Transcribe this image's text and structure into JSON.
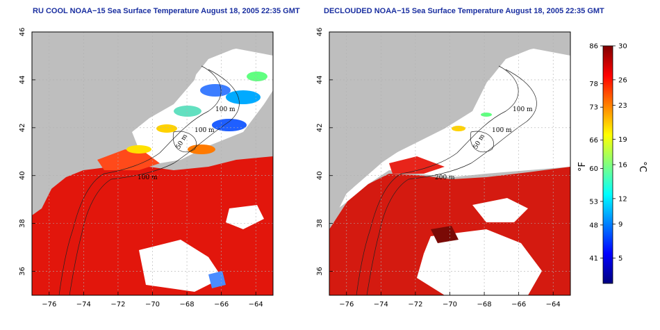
{
  "panels": [
    {
      "id": "left",
      "title": "RU COOL NOAA−15 Sea Surface Temperature August 18, 2005 22:35 GMT",
      "mode": "raw"
    },
    {
      "id": "right",
      "title": "DECLOUDED NOAA−15 Sea Surface Temperature August 18, 2005 22:35 GMT",
      "mode": "declouded"
    }
  ],
  "axes": {
    "lon_ticks": [
      -76,
      -74,
      -72,
      -70,
      -68,
      -66,
      -64
    ],
    "lon_tick_labels": [
      "−76",
      "−74",
      "−72",
      "−70",
      "−68",
      "−66",
      "−64"
    ],
    "lat_ticks": [
      36,
      38,
      40,
      42,
      44,
      46
    ],
    "lat_tick_labels": [
      "36",
      "38",
      "40",
      "42",
      "44",
      "46"
    ],
    "lon_range": [
      -77,
      -63
    ],
    "lat_range": [
      35,
      46
    ]
  },
  "contour_labels": [
    "100 m",
    "100 m",
    "50 m",
    "100 m",
    "100 m",
    "200 m"
  ],
  "colorbar": {
    "fahrenheit_ticks": [
      86,
      78,
      73,
      66,
      60,
      53,
      48,
      41
    ],
    "fahrenheit_labels": [
      "86",
      "78",
      "73",
      "66",
      "60",
      "53",
      "48",
      "41"
    ],
    "celsius_ticks": [
      30,
      26,
      23,
      19,
      16,
      12,
      9,
      5
    ],
    "celsius_labels": [
      "30",
      "26",
      "23",
      "19",
      "16",
      "12",
      "9",
      "5"
    ],
    "celsius_range": [
      2,
      30
    ],
    "fahrenheit_unit": "°F",
    "celsius_unit": "°C",
    "colors": [
      "#00007f",
      "#0000ff",
      "#0080ff",
      "#00ffff",
      "#80ff80",
      "#ffff00",
      "#ff8000",
      "#ff0000",
      "#7f0000"
    ]
  },
  "colors": {
    "land": "#bebebe",
    "cloud": "#ffffff",
    "warm_water": "#e2160c",
    "title_text": "#1a2fa0"
  }
}
